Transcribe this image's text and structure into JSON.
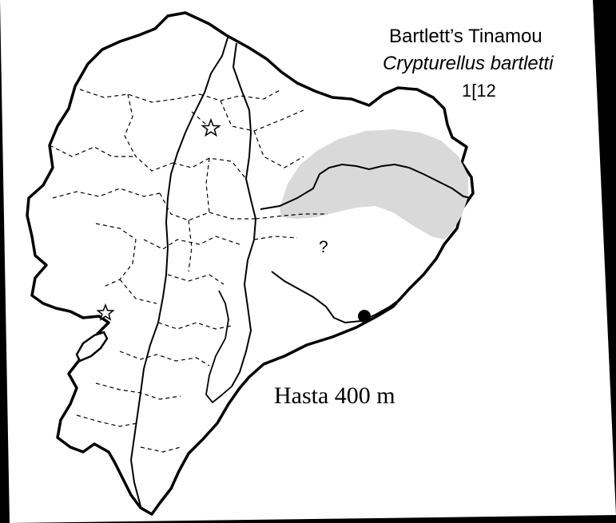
{
  "map": {
    "common_name": "Bartlett’s Tinamou",
    "scientific_name": "Crypturellus bartletti",
    "map_number": "1[12",
    "unknown_marker": "?",
    "elevation_note": "Hasta 400 m",
    "colors": {
      "background": "#000000",
      "land": "#ffffff",
      "outline": "#000000",
      "range_shading": "#d9d9d9",
      "record_point": "#000000"
    },
    "icons": [
      "star-icon",
      "star-icon",
      "dot-icon"
    ]
  }
}
